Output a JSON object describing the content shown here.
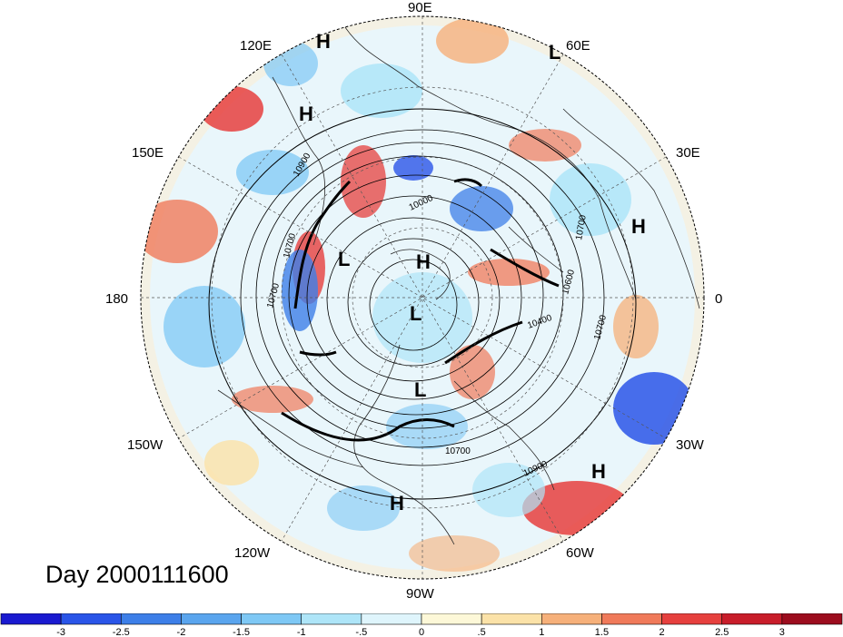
{
  "map": {
    "projection": "north polar stereographic",
    "longitude_labels": [
      {
        "text": "90E",
        "lon": 90
      },
      {
        "text": "60E",
        "lon": 60
      },
      {
        "text": "30E",
        "lon": 30
      },
      {
        "text": "0",
        "lon": 0
      },
      {
        "text": "30W",
        "lon": -30
      },
      {
        "text": "60W",
        "lon": -60
      },
      {
        "text": "90W",
        "lon": -90
      },
      {
        "text": "120W",
        "lon": -120
      },
      {
        "text": "150W",
        "lon": -150
      },
      {
        "text": "180",
        "lon": 180
      },
      {
        "text": "150E",
        "lon": 150
      },
      {
        "text": "120E",
        "lon": 120
      }
    ],
    "pressure_centers": [
      {
        "type": "H",
        "lon": 95
      },
      {
        "type": "H",
        "lon": 93
      },
      {
        "type": "L",
        "lon": 62
      },
      {
        "type": "H",
        "lon": 20
      },
      {
        "type": "L",
        "lon": 135
      },
      {
        "type": "H",
        "lon": 75
      },
      {
        "type": "L",
        "lon": -100
      },
      {
        "type": "L",
        "lon": -80
      },
      {
        "type": "H",
        "lon": -35
      },
      {
        "type": "H",
        "lon": -95
      }
    ],
    "contour_labels": [
      "10900",
      "10000",
      "10700",
      "10700",
      "10600",
      "10400",
      "10700",
      "10700",
      "10700",
      "10900"
    ],
    "colors": {
      "land_outline": "#2a2a2a",
      "contour": "#000000",
      "grid": "#555555"
    }
  },
  "title": "Day 2000111600",
  "colorbar": {
    "tick_labels": [
      "-3",
      "-2.5",
      "-2",
      "-1.5",
      "-1",
      "-.5",
      "0",
      ".5",
      "1",
      "1.5",
      "2",
      "2.5",
      "3"
    ],
    "colors": [
      "#1a1ad0",
      "#2a55e8",
      "#3d7fe8",
      "#5aa5ee",
      "#7ec8f5",
      "#aee5f8",
      "#dff5fc",
      "#fdf8d8",
      "#fbe2a8",
      "#f6b07a",
      "#f07a5a",
      "#e6403e",
      "#c81d2a",
      "#9c0d1e"
    ]
  }
}
